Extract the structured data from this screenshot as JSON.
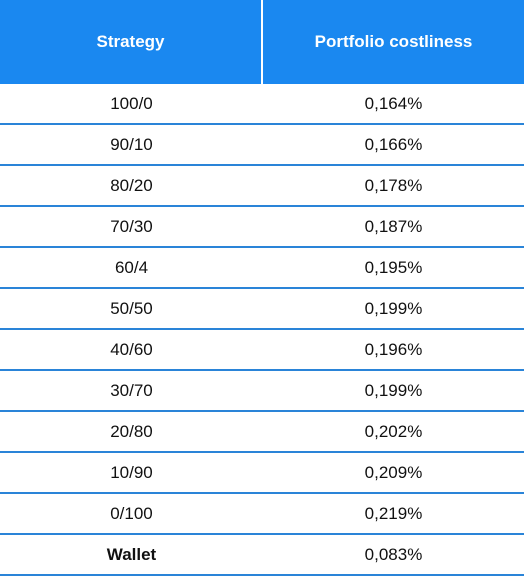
{
  "table": {
    "headers": [
      "Strategy",
      "Portfolio costliness"
    ],
    "rows": [
      {
        "strategy": "100/0",
        "cost": "0,164%"
      },
      {
        "strategy": "90/10",
        "cost": "0,166%"
      },
      {
        "strategy": "80/20",
        "cost": "0,178%"
      },
      {
        "strategy": "70/30",
        "cost": "0,187%"
      },
      {
        "strategy": "60/4",
        "cost": "0,195%"
      },
      {
        "strategy": "50/50",
        "cost": "0,199%"
      },
      {
        "strategy": "40/60",
        "cost": "0,196%"
      },
      {
        "strategy": "30/70",
        "cost": "0,199%"
      },
      {
        "strategy": "20/80",
        "cost": "0,202%"
      },
      {
        "strategy": "10/90",
        "cost": "0,209%"
      },
      {
        "strategy": "0/100",
        "cost": "0,219%"
      },
      {
        "strategy": "Wallet",
        "cost": "0,083%"
      }
    ],
    "colors": {
      "header_bg": "#1a88f0",
      "header_text": "#ffffff",
      "row_divider": "#2a84d8"
    }
  }
}
